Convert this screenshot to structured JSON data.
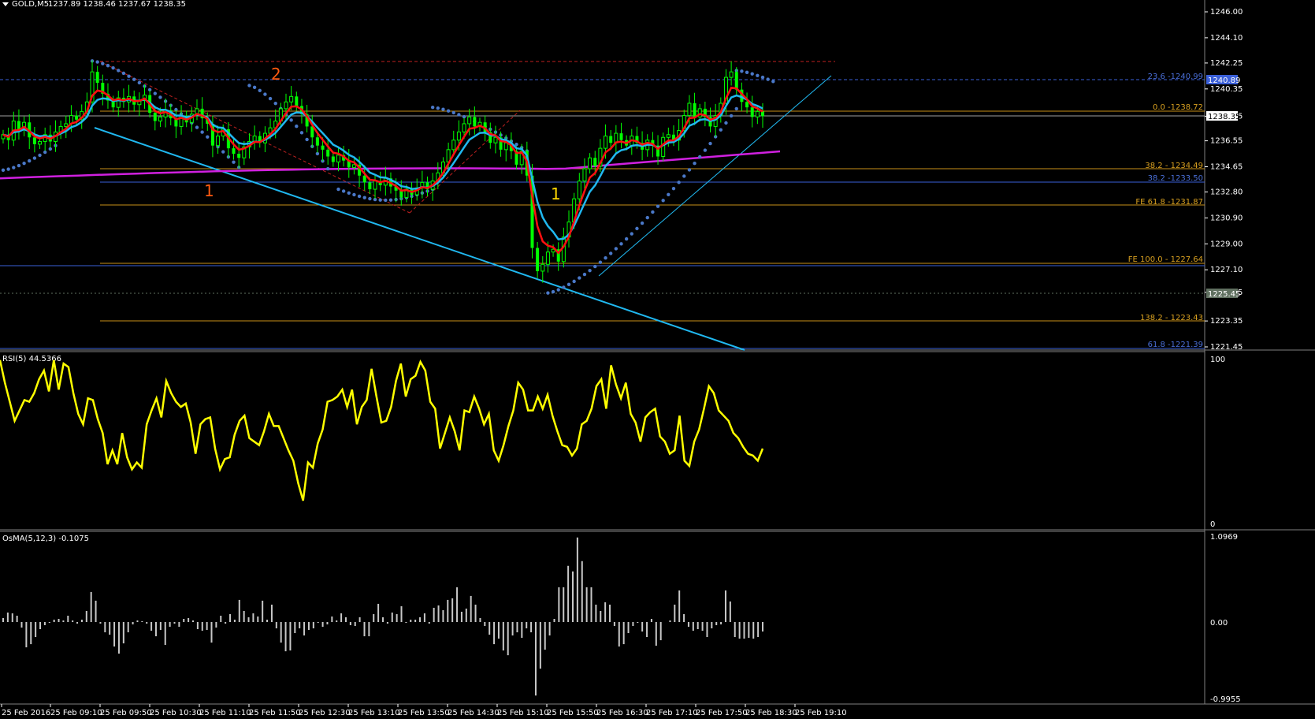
{
  "header": {
    "symbol_timeframe": "GOLD,M5",
    "ohlc": "1237.89 1238.46 1237.67 1238.35"
  },
  "price_axis": {
    "ticks": [
      "1246.00",
      "1244.10",
      "1242.25",
      "1240.35",
      "1238.35",
      "1236.55",
      "1234.65",
      "1232.80",
      "1230.90",
      "1229.00",
      "1227.10",
      "1225.45",
      "1223.35",
      "1221.45"
    ],
    "current_price_label": "1238.35",
    "highlight_label": "1240.89",
    "lowline_label": "1225.45"
  },
  "fib_labels": [
    {
      "text": "23.6 -1240.99",
      "color": "#4a6fd8"
    },
    {
      "text": "0.0 -1238.72",
      "color": "#d8a020"
    },
    {
      "text": "38.2 - 1234.49",
      "color": "#d8a020"
    },
    {
      "text": "38.2 -1233.50",
      "color": "#4a6fd8"
    },
    {
      "text": "FE 61.8 -1231.87",
      "color": "#d8a020"
    },
    {
      "text": "FE 100.0 - 1227.64",
      "color": "#d8a020"
    },
    {
      "text": "138.2 - 1223.43",
      "color": "#d8a020"
    },
    {
      "text": "61.8 -1221.39",
      "color": "#4a6fd8"
    }
  ],
  "wave_labels": [
    {
      "text": "2",
      "color": "#ff5a10"
    },
    {
      "text": "1",
      "color": "#ff5a10"
    },
    {
      "text": "1",
      "color": "#ffd700"
    }
  ],
  "rsi": {
    "label": "RSI(5) 44.5366",
    "scale_top": "100",
    "scale_bottom": "0",
    "values": [
      96,
      83,
      72,
      61,
      67,
      73,
      72,
      77,
      85,
      90,
      78,
      96,
      79,
      94,
      92,
      77,
      65,
      59,
      74,
      73,
      62,
      54,
      36,
      44,
      36,
      54,
      40,
      33,
      37,
      34,
      59,
      67,
      74,
      63,
      84,
      77,
      72,
      69,
      71,
      60,
      42,
      59,
      62,
      63,
      45,
      33,
      39,
      40,
      53,
      61,
      64,
      51,
      49,
      47,
      55,
      65,
      58,
      58,
      51,
      44,
      38,
      25,
      15,
      37,
      34,
      48,
      56,
      72,
      73,
      75,
      79,
      69,
      79,
      59,
      69,
      73,
      91,
      75,
      60,
      61,
      69,
      84,
      94,
      75,
      85,
      87,
      95,
      90,
      72,
      68,
      45,
      54,
      63,
      55,
      44,
      67,
      66,
      75,
      68,
      59,
      65,
      44,
      38,
      47,
      58,
      67,
      83,
      79,
      67,
      67,
      75,
      68,
      76,
      64,
      55,
      47,
      46,
      41,
      45,
      59,
      61,
      68,
      81,
      85,
      68,
      93,
      82,
      74,
      83,
      65,
      60,
      49,
      63,
      66,
      68,
      52,
      49,
      42,
      44,
      64,
      38,
      35,
      49,
      56,
      68,
      81,
      77,
      67,
      64,
      61,
      54,
      51,
      46,
      42,
      41,
      38,
      45
    ]
  },
  "osma": {
    "label": "OsMA(5,12,3) -0.1075",
    "scale_top": "1.0969",
    "scale_mid": "0.00",
    "scale_bottom": "-0.9955",
    "values": [
      0.05,
      0.12,
      0.11,
      0.08,
      -0.07,
      -0.32,
      -0.28,
      -0.19,
      -0.09,
      -0.04,
      -0.01,
      0.03,
      0.04,
      0.02,
      0.08,
      0.02,
      -0.02,
      0.03,
      0.14,
      0.38,
      0.27,
      -0.02,
      -0.13,
      -0.16,
      -0.31,
      -0.4,
      -0.27,
      -0.13,
      -0.03,
      0.02,
      0.01,
      -0.02,
      -0.11,
      -0.18,
      -0.1,
      -0.29,
      -0.06,
      -0.02,
      -0.06,
      0.04,
      0.05,
      0.02,
      -0.09,
      -0.11,
      -0.1,
      -0.26,
      -0.07,
      0.08,
      -0.02,
      0.1,
      0.03,
      0.28,
      0.14,
      0.06,
      0.11,
      0.07,
      0.27,
      0.03,
      0.22,
      -0.08,
      -0.26,
      -0.37,
      -0.36,
      -0.14,
      -0.08,
      -0.17,
      -0.1,
      -0.08,
      -0.01,
      -0.06,
      -0.03,
      0.07,
      0.02,
      0.11,
      0.06,
      -0.04,
      -0.05,
      0.06,
      -0.18,
      -0.18,
      0.1,
      0.23,
      0.06,
      -0.02,
      0.12,
      0.1,
      0.2,
      -0.01,
      0.03,
      0.03,
      0.06,
      0.11,
      -0.02,
      0.18,
      0.21,
      0.15,
      0.28,
      0.3,
      0.44,
      0.13,
      0.17,
      0.33,
      0.22,
      0.05,
      -0.05,
      -0.16,
      -0.28,
      -0.21,
      -0.36,
      -0.42,
      -0.17,
      -0.13,
      -0.2,
      -0.08,
      -0.13,
      -0.93,
      -0.59,
      -0.35,
      -0.17,
      0.04,
      0.44,
      0.44,
      0.71,
      0.64,
      1.07,
      0.77,
      0.44,
      0.44,
      0.22,
      0.14,
      0.25,
      0.22,
      -0.05,
      -0.31,
      -0.28,
      -0.14,
      -0.05,
      -0.01,
      -0.12,
      -0.19,
      0.04,
      -0.3,
      -0.23,
      0.0,
      0.02,
      0.22,
      0.4,
      0.1,
      -0.06,
      -0.11,
      -0.09,
      -0.11,
      -0.19,
      -0.08,
      -0.04,
      -0.03,
      0.4,
      0.26,
      -0.19,
      -0.21,
      -0.21,
      -0.2,
      -0.21,
      -0.19,
      -0.12
    ]
  },
  "time_axis": {
    "labels": [
      "25 Feb 2016",
      "25 Feb 09:10",
      "25 Feb 09:50",
      "25 Feb 10:30",
      "25 Feb 11:10",
      "25 Feb 11:50",
      "25 Feb 12:30",
      "25 Feb 13:10",
      "25 Feb 13:50",
      "25 Feb 14:30",
      "25 Feb 15:10",
      "25 Feb 15:50",
      "25 Feb 16:30",
      "25 Feb 17:10",
      "25 Feb 17:50",
      "25 Feb 18:30",
      "25 Feb 19:10"
    ]
  },
  "colors": {
    "bull": "#00ff00",
    "bear": "#00ff00",
    "ma_fast": "#ff1010",
    "ma_slow": "#20b8f0",
    "ma_long": "#d020e0",
    "sar": "#4a78c8",
    "rsi": "#ffff00",
    "osma": "#c8c8c8"
  }
}
